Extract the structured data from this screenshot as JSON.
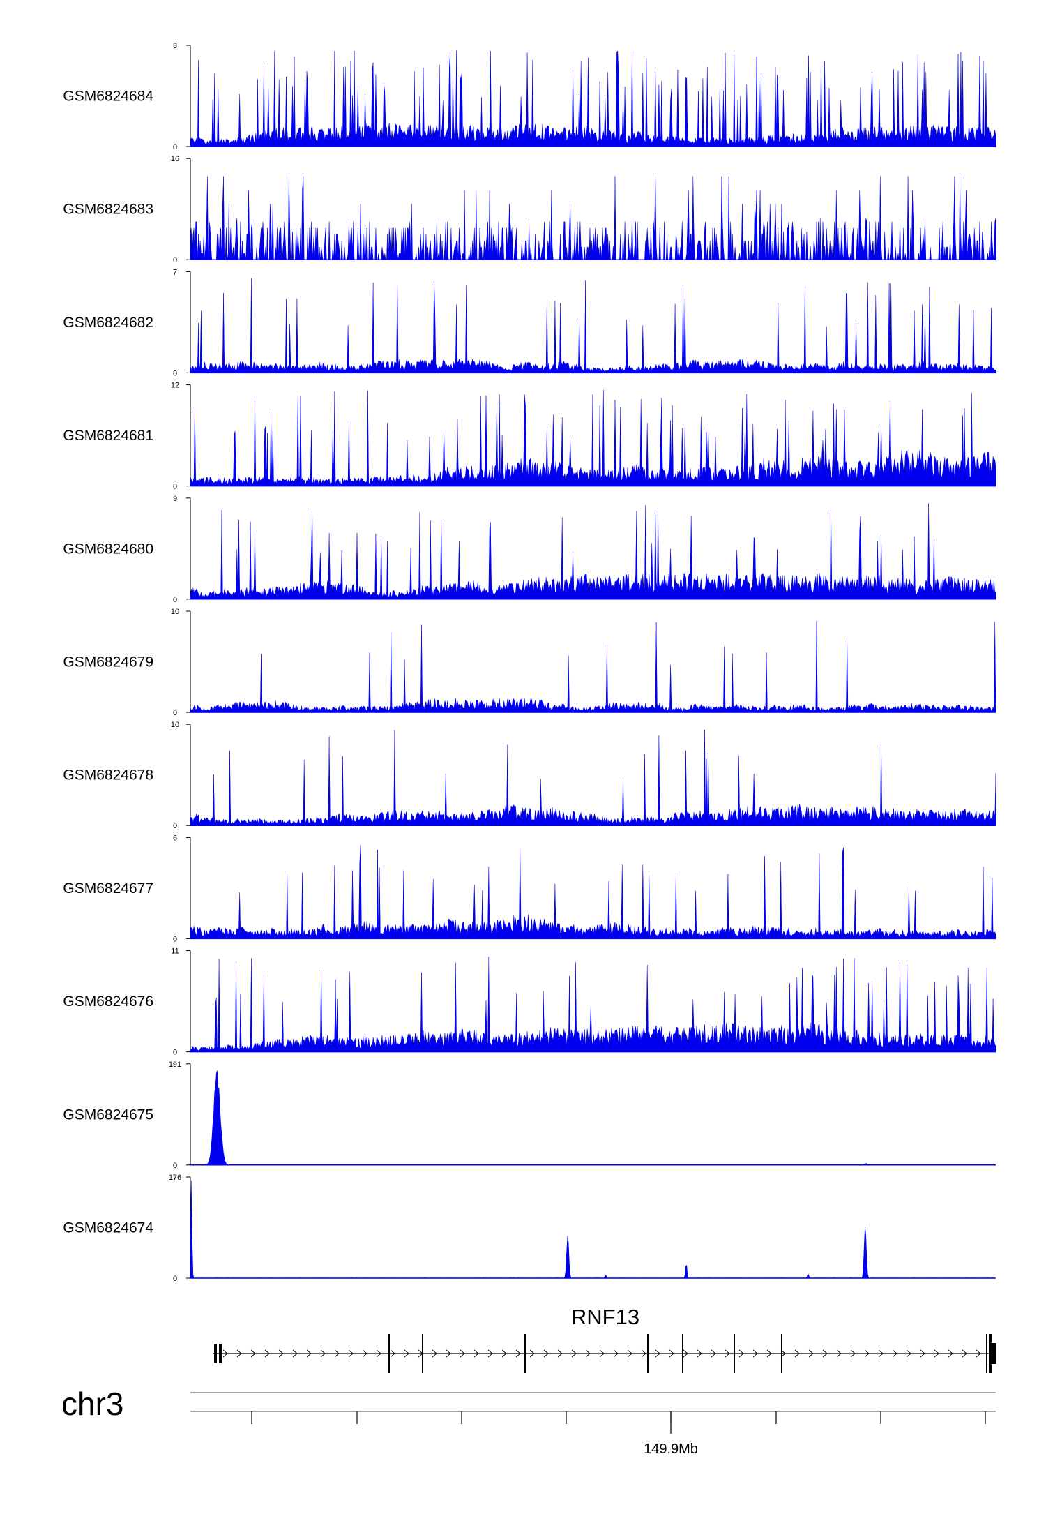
{
  "chart_data": {
    "type": "area",
    "title": "",
    "color": "#0000ee",
    "genome_position_label": "149.9Mb",
    "chromosome": "chr3",
    "gene": {
      "name": "RNF13",
      "strand": "+",
      "exon_count": 12
    },
    "x_range": [
      "149.83Mb",
      "149.98Mb"
    ],
    "tracks": [
      {
        "name": "GSM6824684",
        "ymin": 0,
        "ymax": 8,
        "peaks": [],
        "signal": "noise",
        "seed": 11,
        "base": 0.2,
        "spike": 0.88
      },
      {
        "name": "GSM6824683",
        "ymin": 0,
        "ymax": 16,
        "peaks": [],
        "signal": "sparse",
        "seed": 23,
        "base": 0.28,
        "spike": 1.0
      },
      {
        "name": "GSM6824682",
        "ymin": 0,
        "ymax": 7,
        "peaks": [],
        "signal": "noise",
        "seed": 37,
        "base": 0.18,
        "spike": 0.95
      },
      {
        "name": "GSM6824681",
        "ymin": 0,
        "ymax": 12,
        "peaks": [],
        "signal": "dense",
        "seed": 41,
        "base": 0.26,
        "spike": 0.92
      },
      {
        "name": "GSM6824680",
        "ymin": 0,
        "ymax": 9,
        "peaks": [],
        "signal": "noise",
        "seed": 53,
        "base": 0.22,
        "spike": 0.95
      },
      {
        "name": "GSM6824679",
        "ymin": 0,
        "ymax": 10,
        "peaks": [],
        "signal": "noise",
        "seed": 67,
        "base": 0.16,
        "spike": 0.98
      },
      {
        "name": "GSM6824678",
        "ymin": 0,
        "ymax": 10,
        "peaks": [],
        "signal": "noise",
        "seed": 71,
        "base": 0.18,
        "spike": 0.98
      },
      {
        "name": "GSM6824677",
        "ymin": 0,
        "ymax": 6,
        "peaks": [],
        "signal": "noise",
        "seed": 83,
        "base": 0.24,
        "spike": 0.96
      },
      {
        "name": "GSM6824676",
        "ymin": 0,
        "ymax": 11,
        "peaks": [],
        "signal": "dense",
        "seed": 97,
        "base": 0.22,
        "spike": 0.95
      },
      {
        "name": "GSM6824675",
        "ymin": 0,
        "ymax": 191,
        "signal": "flat",
        "seed": 101,
        "peaks": [
          {
            "pos": 0.033,
            "height": 183,
            "width": 0.009
          },
          {
            "pos": 0.838,
            "height": 3,
            "width": 0.003
          }
        ]
      },
      {
        "name": "GSM6824674",
        "ymin": 0,
        "ymax": 176,
        "signal": "flat",
        "seed": 113,
        "peaks": [
          {
            "pos": 0.001,
            "height": 176,
            "width": 0.002
          },
          {
            "pos": 0.468,
            "height": 80,
            "width": 0.003
          },
          {
            "pos": 0.515,
            "height": 6,
            "width": 0.002
          },
          {
            "pos": 0.615,
            "height": 28,
            "width": 0.002
          },
          {
            "pos": 0.766,
            "height": 8,
            "width": 0.002
          },
          {
            "pos": 0.837,
            "height": 96,
            "width": 0.003
          }
        ]
      }
    ]
  }
}
